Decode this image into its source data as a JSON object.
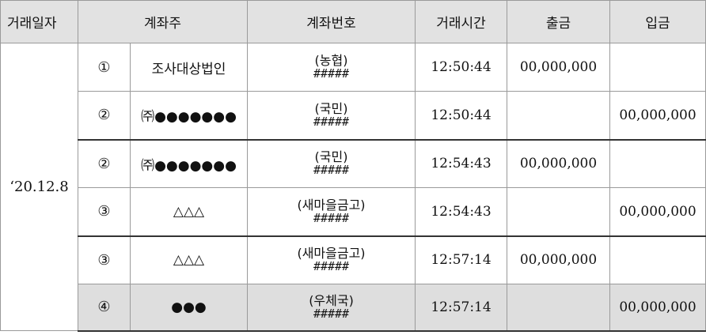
{
  "headers": {
    "date": "거래일자",
    "holder": "계좌주",
    "account_no": "계좌번호",
    "time": "거래시간",
    "withdrawal": "출금",
    "deposit": "입금"
  },
  "date": "‘20.12.8",
  "rows": [
    {
      "num": "①",
      "holder": "조사대상법인",
      "bank": "(농협)",
      "account": "#####",
      "time": "12:50:44",
      "withdrawal": "00,000,000",
      "deposit": ""
    },
    {
      "num": "②",
      "holder": "㈜●●●●●●●",
      "bank": "(국민)",
      "account": "#####",
      "time": "12:50:44",
      "withdrawal": "",
      "deposit": "00,000,000"
    },
    {
      "num": "②",
      "holder": "㈜●●●●●●●",
      "bank": "(국민)",
      "account": "#####",
      "time": "12:54:43",
      "withdrawal": "00,000,000",
      "deposit": ""
    },
    {
      "num": "③",
      "holder": "△△△",
      "bank": "(새마을금고)",
      "account": "#####",
      "time": "12:54:43",
      "withdrawal": "",
      "deposit": "00,000,000"
    },
    {
      "num": "③",
      "holder": "△△△",
      "bank": "(새마을금고)",
      "account": "#####",
      "time": "12:57:14",
      "withdrawal": "00,000,000",
      "deposit": ""
    },
    {
      "num": "④",
      "holder": "●●●",
      "bank": "(우체국)",
      "account": "#####",
      "time": "12:57:14",
      "withdrawal": "",
      "deposit": "00,000,000"
    }
  ]
}
